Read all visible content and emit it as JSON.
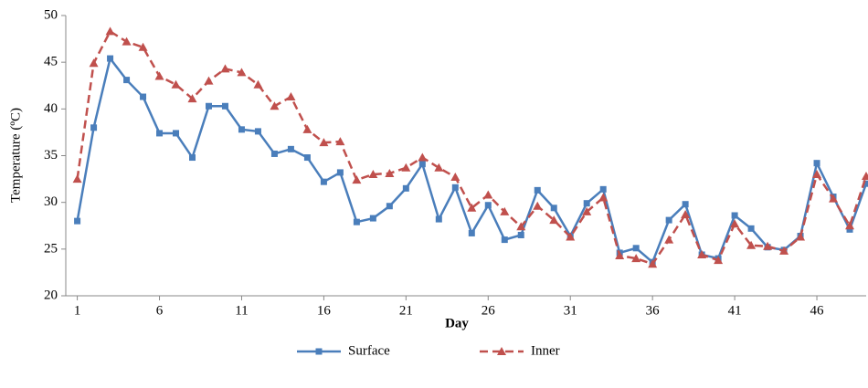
{
  "chart_data": {
    "type": "line",
    "x_label": "Day",
    "y_label": "Temperature (ºC)",
    "x": [
      1,
      2,
      3,
      4,
      5,
      6,
      7,
      8,
      9,
      10,
      11,
      12,
      13,
      14,
      15,
      16,
      17,
      18,
      19,
      20,
      21,
      22,
      23,
      24,
      25,
      26,
      27,
      28,
      29,
      30,
      31,
      32,
      33,
      34,
      35,
      36,
      37,
      38,
      39,
      40,
      41,
      42,
      43,
      44,
      45,
      46,
      47,
      48,
      49
    ],
    "series": [
      {
        "name": "Surface",
        "color": "#4a7ebb",
        "dash": false,
        "marker": "square",
        "values": [
          28,
          38,
          45.4,
          43.1,
          41.3,
          37.4,
          37.4,
          34.8,
          40.3,
          40.3,
          37.8,
          37.6,
          35.2,
          35.7,
          34.8,
          32.2,
          33.2,
          27.9,
          28.3,
          29.6,
          31.5,
          34.1,
          28.2,
          31.6,
          26.7,
          29.7,
          26,
          26.5,
          31.3,
          29.4,
          26.4,
          29.9,
          31.4,
          24.6,
          25.1,
          23.6,
          28.1,
          29.8,
          24.4,
          24,
          28.6,
          27.2,
          25.2,
          24.9,
          26.4,
          34.2,
          30.6,
          27.1,
          32
        ]
      },
      {
        "name": "Inner",
        "color": "#c0504d",
        "dash": true,
        "marker": "triangle",
        "values": [
          32.5,
          44.9,
          48.3,
          47.2,
          46.6,
          43.5,
          42.6,
          41.1,
          43,
          44.3,
          43.9,
          42.6,
          40.3,
          41.3,
          37.8,
          36.4,
          36.5,
          32.4,
          33,
          33.1,
          33.7,
          34.8,
          33.7,
          32.7,
          29.4,
          30.8,
          29,
          27.4,
          29.6,
          28.1,
          26.3,
          29,
          30.5,
          24.3,
          24,
          23.4,
          26,
          28.7,
          24.4,
          23.8,
          27.7,
          25.4,
          25.3,
          24.8,
          26.3,
          33,
          30.4,
          27.5,
          32.8
        ]
      }
    ],
    "xlim": [
      0.3,
      49
    ],
    "xticks": [
      1,
      6,
      11,
      16,
      21,
      26,
      31,
      36,
      41,
      46
    ],
    "ylim": [
      20,
      50
    ],
    "yticks": [
      20,
      25,
      30,
      35,
      40,
      45,
      50
    ],
    "grid": false,
    "legend": "bottom"
  }
}
